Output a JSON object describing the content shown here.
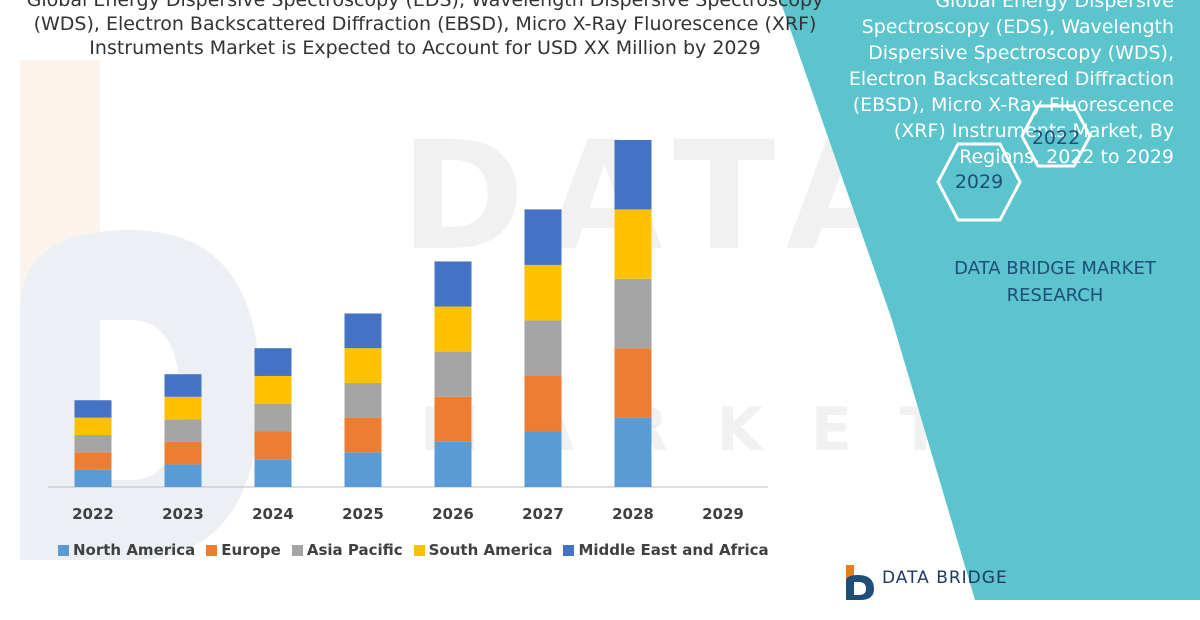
{
  "title": "Global Energy Dispersive Spectroscopy (EDS), Wavelength Dispersive Spectroscopy (WDS), Electron Backscattered Diffraction (EBSD), Micro X-Ray Fluorescence (XRF) Instruments Market is Expected to Account for USD XX Million by 2029",
  "panel": {
    "title": "Global Energy Dispersive Spectroscopy (EDS), Wavelength Dispersive Spectroscopy (WDS), Electron Backscattered Diffraction (EBSD), Micro X-Ray Fluorescence (XRF) Instruments Market, By Regions, 2022 to 2029",
    "hex_2022": "2022",
    "hex_2029": "2029",
    "brand": "DATA BRIDGE MARKET RESEARCH",
    "color": "#5bc4cc"
  },
  "watermark": {
    "main": "DATA BRIDGE",
    "sub": "MARKET RESEARCH"
  },
  "logo": {
    "text": "DATA BRIDGE",
    "icon": "data-bridge-logo-icon"
  },
  "chart_data": {
    "type": "bar",
    "stacked": true,
    "categories": [
      "2022",
      "2023",
      "2024",
      "2025",
      "2026",
      "2027",
      "2028",
      "2029"
    ],
    "series": [
      {
        "name": "North America",
        "color": "#5b9bd5",
        "values": [
          1.0,
          1.3,
          1.6,
          2.0,
          2.6,
          3.2,
          4.0,
          0
        ]
      },
      {
        "name": "Europe",
        "color": "#ed7d31",
        "values": [
          1.0,
          1.3,
          1.6,
          2.0,
          2.6,
          3.2,
          4.0,
          0
        ]
      },
      {
        "name": "Asia Pacific",
        "color": "#a5a5a5",
        "values": [
          1.0,
          1.3,
          1.6,
          2.0,
          2.6,
          3.2,
          4.0,
          0
        ]
      },
      {
        "name": "South America",
        "color": "#ffc000",
        "values": [
          1.0,
          1.3,
          1.6,
          2.0,
          2.6,
          3.2,
          4.0,
          0
        ]
      },
      {
        "name": "Middle East and Africa",
        "color": "#4472c4",
        "values": [
          1.0,
          1.3,
          1.6,
          2.0,
          2.6,
          3.2,
          4.0,
          0
        ]
      }
    ],
    "grid": false,
    "legend": "bottom"
  }
}
